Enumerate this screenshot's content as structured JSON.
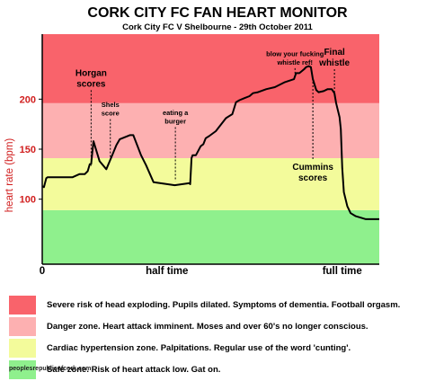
{
  "chart_data": {
    "type": "line",
    "title": "CORK CITY FC FAN HEART MONITOR",
    "subtitle": "Cork City FC V Shelbourne - 29th October 2011",
    "ylabel": "heart rate (bpm)",
    "xlabel": "",
    "ylim": [
      35,
      265
    ],
    "xlim": [
      0,
      100
    ],
    "y_ticks": [
      100,
      150,
      200
    ],
    "x_ticks": [
      {
        "x": 0,
        "label": "0"
      },
      {
        "x": 37,
        "label": "half time"
      },
      {
        "x": 89,
        "label": "full time"
      }
    ],
    "grid": false,
    "bands": [
      {
        "from": 35,
        "to": 89,
        "color": "#8ff08d"
      },
      {
        "from": 89,
        "to": 141,
        "color": "#f3fb9b"
      },
      {
        "from": 141,
        "to": 196,
        "color": "#fdb0b1"
      },
      {
        "from": 196,
        "to": 265,
        "color": "#f9636b"
      }
    ],
    "series": [
      {
        "color": "#000000",
        "x": [
          0,
          0.5,
          1.2,
          1.6,
          9,
          11,
          12.6,
          13.5,
          14.1,
          14.5,
          15.2,
          17,
          19,
          20.4,
          22,
          23,
          26,
          27,
          28.5,
          29.3,
          30.8,
          33,
          39.3,
          43.8,
          43.9,
          44.3,
          44.6,
          45.6,
          47,
          47.8,
          48.5,
          49.5,
          51.5,
          54.5,
          56.4,
          57.5,
          58.5,
          60,
          61.5,
          62.5,
          64,
          66.5,
          69,
          72,
          74.7,
          75.3,
          76.3,
          77.7,
          78.3,
          79.1,
          79.7,
          80.3,
          81.3,
          82,
          83.5,
          84.7,
          85.9,
          86.7,
          87.2,
          88.2,
          88.6,
          89,
          89.5,
          90.5,
          91.5,
          93,
          95,
          96,
          100
        ],
        "y": [
          113,
          112,
          121,
          122,
          122,
          125,
          125,
          128,
          135,
          135,
          158,
          138,
          130,
          141,
          154,
          160,
          164,
          164,
          151,
          144,
          134,
          117,
          114,
          116,
          115,
          141,
          144,
          144,
          153,
          155,
          161,
          163,
          168,
          181,
          185,
          197,
          199,
          201,
          203,
          206,
          207,
          210,
          212,
          217,
          220,
          226,
          226,
          230,
          232,
          233,
          232,
          220,
          209,
          207,
          208,
          210,
          210,
          206,
          196,
          182,
          170,
          131,
          107,
          93,
          86,
          83,
          81,
          80,
          80
        ]
      }
    ],
    "annotations": [
      {
        "text": "Horgan\nscores",
        "x": 14.5,
        "y_top": 209,
        "y_bottom": 133,
        "dashed": true
      },
      {
        "text": "Shels\nscore",
        "x": 20.2,
        "y_top": 180,
        "y_bottom": 141,
        "dashed": true
      },
      {
        "text": "eating a\nburger",
        "x": 39.5,
        "y_top": 172,
        "y_bottom": 118,
        "dashed": true
      },
      {
        "text": "blow your fucking\nwhistle ref!",
        "x": 75,
        "y_top": 231,
        "y_bottom": 222,
        "dashed": true
      },
      {
        "text": "Final\nwhistle",
        "x": 86.7,
        "y_top": 230,
        "y_bottom": 206,
        "dashed": true
      },
      {
        "text": "Cummins\nscores",
        "x": 80.3,
        "y_top": 221,
        "y_bottom": 140,
        "dashed": true
      }
    ]
  },
  "legend": [
    {
      "color": "#f9636b",
      "text": "Severe risk of head exploding. Pupils dilated. Symptoms of dementia. Football orgasm."
    },
    {
      "color": "#fdb0b1",
      "text": "Danger zone. Heart attack imminent. Moses and over 60's no longer conscious."
    },
    {
      "color": "#f3fb9b",
      "text": "Cardiac hypertension zone. Palpitations. Regular use of the word 'cunting'."
    },
    {
      "color": "#8ff08d",
      "text": "Safe zone. Risk of heart attack low. Gat on."
    }
  ],
  "footer": "peoplesrepublicofcork.com"
}
